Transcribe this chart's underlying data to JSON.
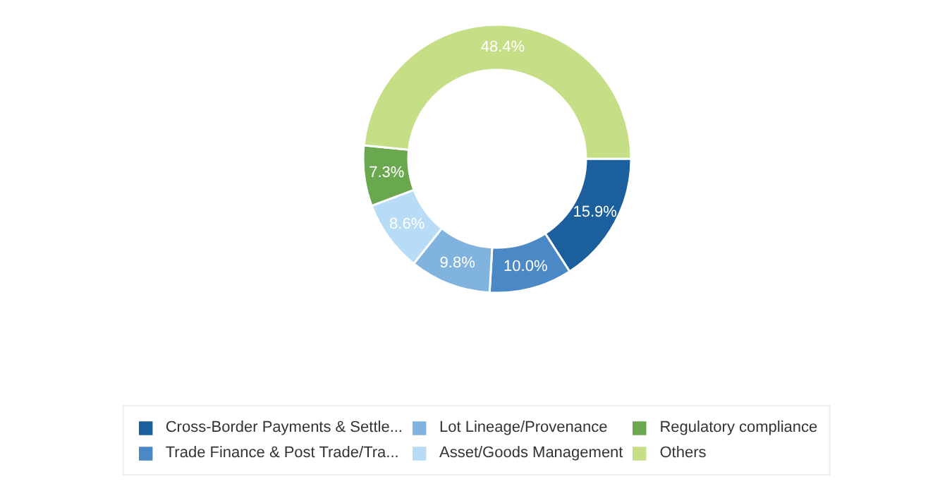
{
  "chart_data": {
    "type": "donut",
    "categories": [
      "Cross-Border Payments & Settle...",
      "Trade Finance & Post Trade/Tra...",
      "Lot Lineage/Provenance",
      "Asset/Goods Management",
      "Regulatory compliance",
      "Others"
    ],
    "values": [
      15.9,
      10.0,
      9.8,
      8.6,
      7.3,
      48.4
    ],
    "value_labels": [
      "15.9%",
      "10.0%",
      "9.8%",
      "8.6%",
      "7.3%",
      "48.4%"
    ],
    "colors": [
      "#1c5f9d",
      "#4a88c6",
      "#80b3de",
      "#b8dcf6",
      "#6aa84f",
      "#c6df87"
    ],
    "legend": "bottom"
  }
}
